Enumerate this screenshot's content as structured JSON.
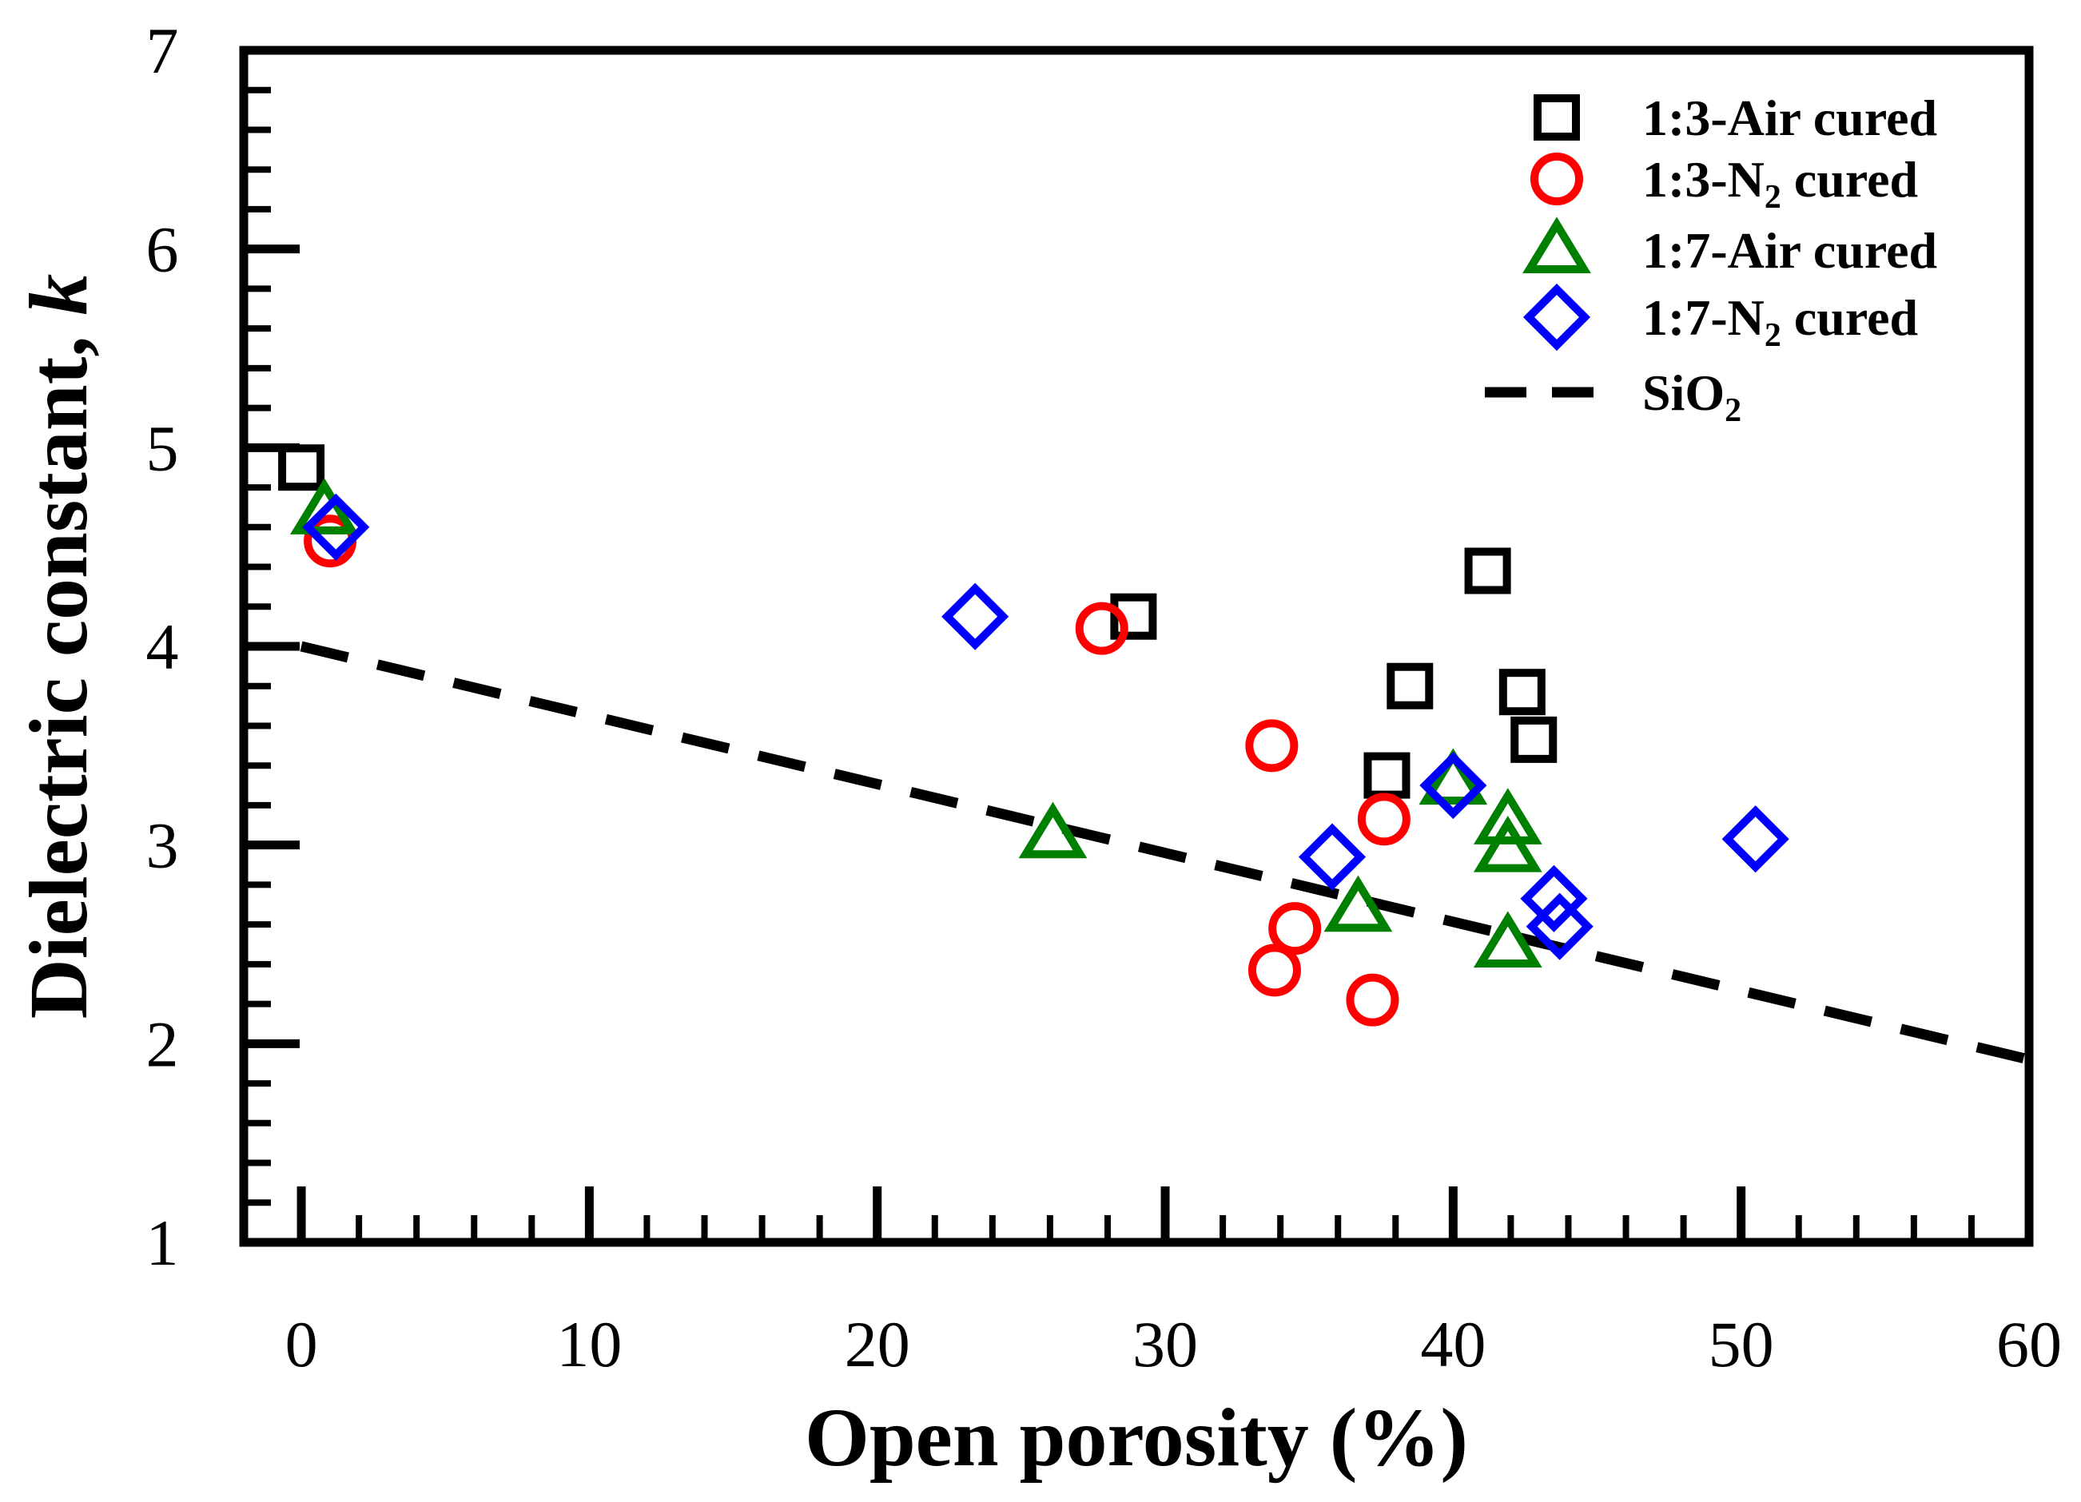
{
  "chart_data": {
    "type": "scatter",
    "title": "",
    "xlabel": "Open porosity (%)",
    "ylabel": "Dielectric constant, ",
    "ylabel_italic": "k",
    "xlim": [
      -2,
      60
    ],
    "ylim": [
      1,
      7
    ],
    "xticks": [
      0,
      10,
      20,
      30,
      40,
      50,
      60
    ],
    "yticks": [
      1,
      2,
      3,
      4,
      5,
      6,
      7
    ],
    "legend_position": "top-right",
    "series": [
      {
        "name": "1:3-Air cured",
        "legend_label": "1:3-Air cured",
        "marker": "square",
        "color": "#000000",
        "points": [
          [
            0,
            4.9
          ],
          [
            28.9,
            4.15
          ],
          [
            38.5,
            3.8
          ],
          [
            37.7,
            3.35
          ],
          [
            41.2,
            4.38
          ],
          [
            42.4,
            3.77
          ],
          [
            42.8,
            3.53
          ]
        ]
      },
      {
        "name": "1:3-N2 cured",
        "legend_label": "1:3-N",
        "legend_sub": "2",
        "legend_suffix": " cured",
        "marker": "circle",
        "color": "#ff0000",
        "points": [
          [
            1.0,
            4.53
          ],
          [
            27.8,
            4.09
          ],
          [
            33.7,
            3.5
          ],
          [
            37.6,
            3.13
          ],
          [
            34.5,
            2.58
          ],
          [
            33.8,
            2.37
          ],
          [
            37.2,
            2.22
          ]
        ]
      },
      {
        "name": "1:7-Air cured",
        "legend_label": "1:7-Air cured",
        "marker": "triangle",
        "color": "#008000",
        "points": [
          [
            0.8,
            4.68
          ],
          [
            26.1,
            3.05
          ],
          [
            36.7,
            2.68
          ],
          [
            40.0,
            3.32
          ],
          [
            41.9,
            3.12
          ],
          [
            41.9,
            2.98
          ],
          [
            41.9,
            2.5
          ]
        ]
      },
      {
        "name": "1:7-N2 cured",
        "legend_label": "1:7-N",
        "legend_sub": "2",
        "legend_suffix": " cured",
        "marker": "diamond",
        "color": "#0000ff",
        "points": [
          [
            1.2,
            4.6
          ],
          [
            23.4,
            4.15
          ],
          [
            35.8,
            2.94
          ],
          [
            40.0,
            3.3
          ],
          [
            43.5,
            2.73
          ],
          [
            43.7,
            2.59
          ],
          [
            50.5,
            3.03
          ]
        ]
      },
      {
        "name": "SiO2",
        "legend_label": "SiO",
        "legend_sub": "2",
        "legend_suffix": "",
        "marker": "dashed-line",
        "color": "#000000",
        "points": [
          [
            0,
            4.0
          ],
          [
            60,
            1.92
          ]
        ]
      }
    ]
  }
}
